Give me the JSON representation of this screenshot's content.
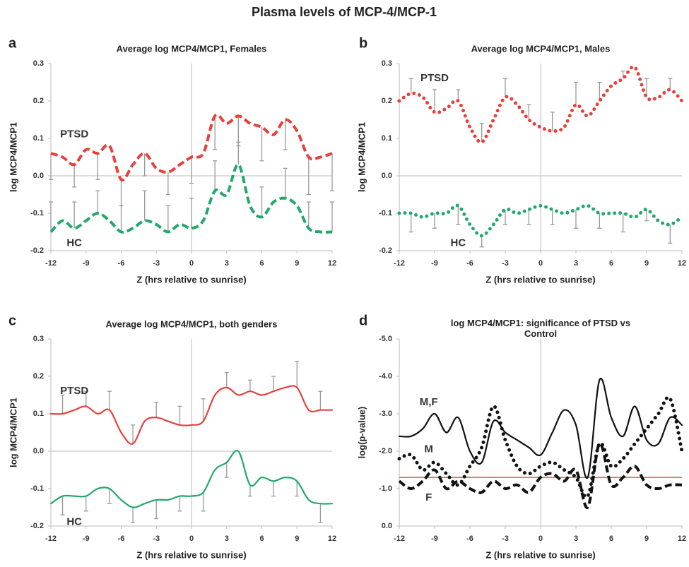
{
  "title": "Plasma levels of MCP-4/MCP-1",
  "chart_data": [
    {
      "type": "line",
      "label": "a",
      "title": "Average log MCP4/MCP1,  Females",
      "x_label": "Z (hrs relative to sunrise)",
      "y_label": "log MCP4/MCP1",
      "x": [
        -12,
        -11,
        -10,
        -9,
        -8,
        -7,
        -6,
        -5,
        -4,
        -3,
        -2,
        -1,
        0,
        1,
        2,
        3,
        4,
        5,
        6,
        7,
        8,
        9,
        10,
        11,
        12
      ],
      "xlim": [
        -12,
        12
      ],
      "xticks": [
        -12,
        -9,
        -6,
        -3,
        0,
        3,
        6,
        9,
        12
      ],
      "ylim": [
        -0.2,
        0.3
      ],
      "yticks": [
        -0.2,
        -0.1,
        {
          "value": 0,
          "label": "0.0"
        },
        0.1,
        0.2,
        0.3
      ],
      "series": [
        {
          "name": "PTSD",
          "color": "#e8403a",
          "style": "dashed",
          "error_direction": "down",
          "values": [
            0.06,
            0.05,
            0.03,
            0.07,
            0.06,
            0.08,
            -0.01,
            0.03,
            0.06,
            0.02,
            0.01,
            0.03,
            0.05,
            0.06,
            0.16,
            0.14,
            0.16,
            0.14,
            0.13,
            0.11,
            0.15,
            0.12,
            0.05,
            0.05,
            0.06
          ],
          "errors": [
            0.07,
            null,
            0.06,
            null,
            0.07,
            null,
            0.07,
            null,
            0.06,
            null,
            0.06,
            null,
            0.07,
            null,
            0.09,
            null,
            0.08,
            null,
            0.09,
            null,
            0.08,
            null,
            0.1,
            null,
            0.1
          ]
        },
        {
          "name": "HC",
          "color": "#22a86b",
          "style": "dashed",
          "error_direction": "up",
          "values": [
            -0.15,
            -0.12,
            -0.14,
            -0.12,
            -0.1,
            -0.12,
            -0.15,
            -0.14,
            -0.12,
            -0.13,
            -0.15,
            -0.13,
            -0.14,
            -0.12,
            -0.04,
            -0.05,
            0.03,
            -0.08,
            -0.11,
            -0.07,
            -0.06,
            -0.08,
            -0.14,
            -0.15,
            -0.15
          ],
          "errors": [
            0.08,
            null,
            0.07,
            null,
            0.06,
            null,
            0.07,
            null,
            0.08,
            null,
            0.07,
            null,
            0.08,
            null,
            0.08,
            null,
            0.06,
            null,
            0.08,
            null,
            0.08,
            null,
            0.07,
            null,
            0.08
          ]
        }
      ],
      "annotations": [
        {
          "text": "PTSD",
          "x": -10,
          "y": 0.11
        },
        {
          "text": "HC",
          "x": -10,
          "y": -0.18
        }
      ]
    },
    {
      "type": "line",
      "label": "b",
      "title": "Average log MCP4/MCP1,  Males",
      "x_label": "Z (hrs relative to sunrise)",
      "y_label": "log MCP4/MCP1",
      "x": [
        -12,
        -11,
        -10,
        -9,
        -8,
        -7,
        -6,
        -5,
        -4,
        -3,
        -2,
        -1,
        0,
        1,
        2,
        3,
        4,
        5,
        6,
        7,
        8,
        9,
        10,
        11,
        12
      ],
      "xlim": [
        -12,
        12
      ],
      "xticks": [
        -12,
        -9,
        -6,
        -3,
        0,
        3,
        6,
        9,
        12
      ],
      "ylim": [
        -0.2,
        0.3
      ],
      "yticks": [
        -0.2,
        -0.1,
        {
          "value": 0,
          "label": "0.0"
        },
        0.1,
        0.2,
        0.3
      ],
      "series": [
        {
          "name": "PTSD",
          "color": "#e8403a",
          "style": "dotted",
          "error_direction": "up",
          "values": [
            0.2,
            0.22,
            0.21,
            0.17,
            0.18,
            0.2,
            0.13,
            0.09,
            0.15,
            0.21,
            0.19,
            0.15,
            0.13,
            0.12,
            0.13,
            0.19,
            0.16,
            0.2,
            0.24,
            0.26,
            0.29,
            0.21,
            0.21,
            0.23,
            0.2
          ],
          "errors": [
            null,
            0.04,
            null,
            0.06,
            null,
            0.03,
            null,
            0.05,
            null,
            0.05,
            null,
            0.04,
            null,
            0.05,
            null,
            0.06,
            null,
            0.05,
            null,
            0.02,
            null,
            0.05,
            null,
            0.03,
            null
          ]
        },
        {
          "name": "HC",
          "color": "#22a86b",
          "style": "dotted",
          "error_direction": "down",
          "values": [
            -0.1,
            -0.1,
            -0.11,
            -0.1,
            -0.1,
            -0.08,
            -0.13,
            -0.16,
            -0.13,
            -0.09,
            -0.1,
            -0.09,
            -0.08,
            -0.09,
            -0.1,
            -0.09,
            -0.08,
            -0.1,
            -0.1,
            -0.1,
            -0.11,
            -0.09,
            -0.12,
            -0.13,
            -0.11
          ],
          "errors": [
            null,
            0.05,
            null,
            0.04,
            null,
            0.05,
            null,
            0.03,
            null,
            0.04,
            null,
            0.04,
            null,
            0.04,
            null,
            0.05,
            null,
            0.04,
            null,
            0.05,
            null,
            0.03,
            null,
            0.05,
            null
          ]
        }
      ],
      "annotations": [
        {
          "text": "PTSD",
          "x": -9,
          "y": 0.26
        },
        {
          "text": "HC",
          "x": -7,
          "y": -0.18
        }
      ]
    },
    {
      "type": "line",
      "label": "c",
      "title": "Average log MCP4/MCP1,  both genders",
      "x_label": "Z (hrs relative to sunrise)",
      "y_label": "log MCP4/MCP1",
      "x": [
        -12,
        -11,
        -10,
        -9,
        -8,
        -7,
        -6,
        -5,
        -4,
        -3,
        -2,
        -1,
        0,
        1,
        2,
        3,
        4,
        5,
        6,
        7,
        8,
        9,
        10,
        11,
        12
      ],
      "xlim": [
        -12,
        12
      ],
      "xticks": [
        -12,
        -9,
        -6,
        -3,
        0,
        3,
        6,
        9,
        12
      ],
      "ylim": [
        -0.2,
        0.3
      ],
      "yticks": [
        -0.2,
        -0.1,
        {
          "value": 0,
          "label": "0.0"
        },
        0.1,
        0.2,
        0.3
      ],
      "series": [
        {
          "name": "PTSD",
          "color": "#e8403a",
          "style": "solid",
          "error_direction": "up",
          "values": [
            0.1,
            0.1,
            0.11,
            0.12,
            0.1,
            0.11,
            0.05,
            0.02,
            0.08,
            0.09,
            0.08,
            0.07,
            0.07,
            0.08,
            0.15,
            0.17,
            0.15,
            0.16,
            0.15,
            0.16,
            0.17,
            0.17,
            0.11,
            0.11,
            0.11
          ],
          "errors": [
            null,
            0.05,
            null,
            0.04,
            null,
            0.05,
            null,
            0.05,
            null,
            0.04,
            null,
            0.05,
            null,
            0.06,
            null,
            0.04,
            null,
            0.03,
            null,
            0.04,
            null,
            0.07,
            null,
            0.05,
            null
          ]
        },
        {
          "name": "HC",
          "color": "#22a86b",
          "style": "solid",
          "error_direction": "down",
          "values": [
            -0.14,
            -0.12,
            -0.12,
            -0.12,
            -0.1,
            -0.1,
            -0.13,
            -0.15,
            -0.14,
            -0.13,
            -0.13,
            -0.12,
            -0.12,
            -0.11,
            -0.05,
            -0.03,
            0,
            -0.09,
            -0.07,
            -0.08,
            -0.07,
            -0.08,
            -0.13,
            -0.14,
            -0.14
          ],
          "errors": [
            null,
            0.05,
            null,
            0.04,
            null,
            0.04,
            null,
            0.04,
            null,
            0.05,
            null,
            0.04,
            null,
            0.05,
            null,
            0.04,
            null,
            0.03,
            null,
            0.04,
            null,
            0.04,
            null,
            0.05,
            null
          ]
        }
      ],
      "annotations": [
        {
          "text": "PTSD",
          "x": -10,
          "y": 0.16
        },
        {
          "text": "HC",
          "x": -10,
          "y": -0.19
        }
      ]
    },
    {
      "type": "line",
      "label": "d",
      "title": "log MCP4/MCP1: significance of PTSD vs Control",
      "x_label": "Z (hrs relative to sunrise)",
      "y_label": "log(p-value)",
      "x": [
        -12,
        -11,
        -10,
        -9,
        -8,
        -7,
        -6,
        -5,
        -4,
        -3,
        -2,
        -1,
        0,
        1,
        2,
        3,
        4,
        5,
        6,
        7,
        8,
        9,
        10,
        11,
        12
      ],
      "xlim": [
        -12,
        12
      ],
      "xticks": [
        -12,
        -9,
        -6,
        -3,
        0,
        3,
        6,
        9,
        12
      ],
      "ylim": [
        0,
        5
      ],
      "yticks": [
        {
          "value": 0,
          "label": "0.0"
        },
        {
          "value": 1,
          "label": "-1.0"
        },
        {
          "value": 2,
          "label": "-2.0"
        },
        {
          "value": 3,
          "label": "-3.0"
        },
        {
          "value": 4,
          "label": "-4.0"
        },
        {
          "value": 5,
          "label": "-5.0"
        }
      ],
      "hline": 1.3,
      "hline_color": "#e07070",
      "series": [
        {
          "name": "M,F",
          "color": "#111111",
          "style": "solid",
          "values": [
            2.4,
            2.4,
            2.6,
            3.0,
            2.5,
            2.9,
            2.0,
            1.7,
            2.8,
            2.5,
            2.3,
            2.1,
            1.9,
            2.5,
            3.1,
            2.7,
            1.3,
            3.9,
            2.9,
            2.4,
            3.2,
            2.3,
            2.2,
            2.9,
            2.7
          ]
        },
        {
          "name": "M",
          "color": "#111111",
          "style": "dotted",
          "values": [
            1.8,
            1.9,
            1.5,
            1.7,
            1.4,
            1.1,
            1.6,
            2.1,
            3.2,
            2.3,
            1.6,
            1.4,
            1.6,
            1.7,
            1.5,
            1.3,
            0.8,
            2.2,
            1.6,
            1.8,
            2.2,
            2.6,
            3.0,
            3.4,
            2.0
          ]
        },
        {
          "name": "F",
          "color": "#111111",
          "style": "dashed",
          "values": [
            1.2,
            1.0,
            1.2,
            1.5,
            1.0,
            1.2,
            1.0,
            0.9,
            1.2,
            1.0,
            1.1,
            0.9,
            1.3,
            1.4,
            1.2,
            1.5,
            0.5,
            2.2,
            1.1,
            1.3,
            1.6,
            1.1,
            1.0,
            1.1,
            1.1
          ]
        }
      ],
      "annotations": [
        {
          "text": "M,F",
          "x": -9.5,
          "y": 3.3
        },
        {
          "text": "M",
          "x": -9.5,
          "y": 2.05
        },
        {
          "text": "F",
          "x": -9.5,
          "y": 0.75
        }
      ]
    }
  ]
}
